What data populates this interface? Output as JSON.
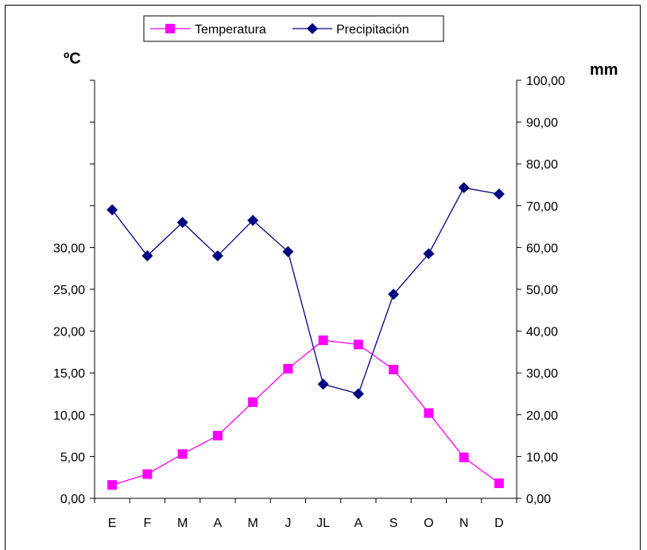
{
  "chart_data": {
    "type": "line",
    "title": "",
    "categories": [
      "E",
      "F",
      "M",
      "A",
      "M",
      "J",
      "JL",
      "A",
      "S",
      "O",
      "N",
      "D"
    ],
    "left_axis": {
      "unit_label": "ºC",
      "ylim": [
        0,
        50
      ],
      "tick_labels": [
        "0,00",
        "5,00",
        "10,00",
        "15,00",
        "20,00",
        "25,00",
        "30,00"
      ]
    },
    "right_axis": {
      "unit_label": "mm",
      "ylim": [
        0,
        100
      ],
      "tick_labels": [
        "0,00",
        "10,00",
        "20,00",
        "30,00",
        "40,00",
        "50,00",
        "60,00",
        "70,00",
        "80,00",
        "90,00",
        "100,00"
      ]
    },
    "series": [
      {
        "name": "Temperatura",
        "axis": "left",
        "color": "#ff00ff",
        "marker": "square",
        "values": [
          1.6,
          2.9,
          5.3,
          7.5,
          11.5,
          15.5,
          18.9,
          18.4,
          15.4,
          10.2,
          4.9,
          1.8
        ]
      },
      {
        "name": "Precipitación",
        "axis": "right",
        "color": "#000080",
        "marker": "diamond",
        "values": [
          69.0,
          58.0,
          66.0,
          58.0,
          66.5,
          59.0,
          27.3,
          25.0,
          48.8,
          58.5,
          74.3,
          72.8
        ]
      }
    ],
    "legend_position": "top-center",
    "grid": false
  }
}
